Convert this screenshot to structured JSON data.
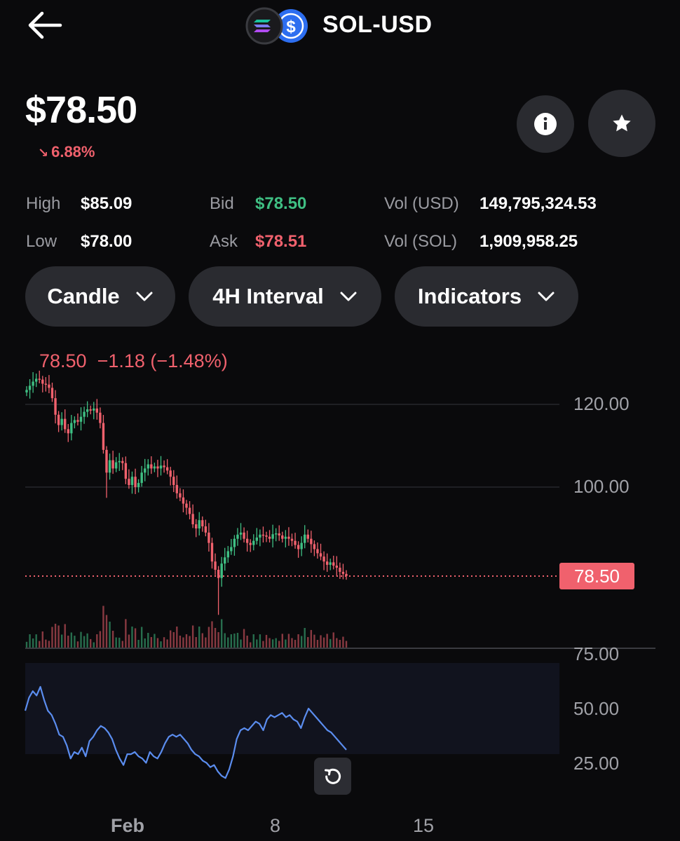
{
  "header": {
    "pair": "SOL-USD",
    "back_icon": "arrow-left-icon",
    "base_icon": "solana-logo-icon",
    "quote_icon": "dollar-coin-icon"
  },
  "price": {
    "value": "$78.50",
    "change": "6.88%",
    "change_direction": "down",
    "change_icon": "arrow-down-right-icon"
  },
  "actions": {
    "info_icon": "info-icon",
    "favorite_icon": "star-icon"
  },
  "stats": {
    "high_label": "High",
    "high_value": "$85.09",
    "low_label": "Low",
    "low_value": "$78.00",
    "bid_label": "Bid",
    "bid_value": "$78.50",
    "ask_label": "Ask",
    "ask_value": "$78.51",
    "vol_usd_label": "Vol (USD)",
    "vol_usd_value": "149,795,324.53",
    "vol_sol_label": "Vol (SOL)",
    "vol_sol_value": "1,909,958.25"
  },
  "controls": {
    "chart_type": "Candle",
    "interval": "4H Interval",
    "indicators": "Indicators"
  },
  "chart": {
    "readout": "78.50  −1.18 (−1.48%)",
    "current_price_tag": "78.50",
    "reset_icon": "rotate-ccw-icon"
  },
  "colors": {
    "up": "#3fbf83",
    "down": "#f0616d",
    "rsi_line": "#5b8def",
    "background": "#0a0a0c"
  },
  "chart_data": {
    "type": "candlestick",
    "price_axis": {
      "ticks": [
        "120.00",
        "100.00"
      ],
      "range": [
        78,
        128
      ]
    },
    "current_price": 78.5,
    "x_axis": {
      "ticks": [
        "Feb",
        "8",
        "15"
      ]
    },
    "candles_close": [
      123.5,
      124.5,
      125.5,
      126.2,
      126.0,
      125.0,
      124.8,
      124.0,
      121.5,
      117.5,
      115.0,
      116.5,
      114.0,
      113.0,
      115.5,
      116.2,
      115.8,
      117.0,
      118.2,
      118.8,
      118.5,
      119.0,
      118.0,
      115.5,
      109.0,
      103.5,
      106.5,
      104.5,
      106.0,
      106.3,
      105.8,
      102.0,
      100.5,
      102.5,
      100.0,
      101.0,
      103.5,
      104.5,
      105.5,
      104.5,
      105.0,
      104.5,
      105.2,
      104.8,
      104.0,
      102.5,
      100.5,
      98.5,
      97.5,
      96.0,
      95.0,
      93.5,
      91.0,
      90.0,
      92.0,
      90.5,
      89.0,
      86.5,
      82.0,
      80.0,
      78.0,
      81.5,
      83.0,
      84.5,
      85.5,
      87.5,
      88.5,
      89.0,
      87.5,
      86.5,
      86.0,
      87.0,
      87.8,
      88.5,
      88.3,
      88.0,
      87.5,
      88.6,
      88.8,
      88.3,
      87.5,
      88.0,
      87.5,
      87.0,
      86.0,
      85.0,
      86.5,
      88.5,
      87.5,
      86.2,
      85.0,
      84.0,
      83.2,
      82.0,
      81.2,
      81.8,
      81.0,
      80.5,
      79.5,
      79.0,
      78.5
    ],
    "rsi": {
      "axis_ticks": [
        "75.00",
        "50.00",
        "25.00"
      ],
      "range": [
        15,
        80
      ],
      "band": [
        30,
        70
      ],
      "midline": 50,
      "values": [
        49,
        55,
        58,
        56,
        60,
        54,
        49,
        47,
        43,
        38,
        37,
        33,
        27,
        30,
        29,
        32,
        28,
        35,
        37,
        40,
        42,
        41,
        39,
        36,
        31,
        27,
        24,
        29,
        29,
        30,
        28,
        27,
        25,
        30,
        28,
        27,
        30,
        34,
        37,
        38,
        37,
        38,
        36,
        34,
        31,
        29,
        28,
        26,
        25,
        23,
        24,
        21,
        19,
        18,
        22,
        28,
        36,
        40,
        41,
        40,
        42,
        44,
        43,
        40,
        45,
        47,
        46,
        47,
        48,
        46,
        47,
        45,
        44,
        41,
        46,
        50,
        48,
        46,
        44,
        42,
        40,
        39,
        37,
        35,
        33,
        31
      ]
    }
  }
}
